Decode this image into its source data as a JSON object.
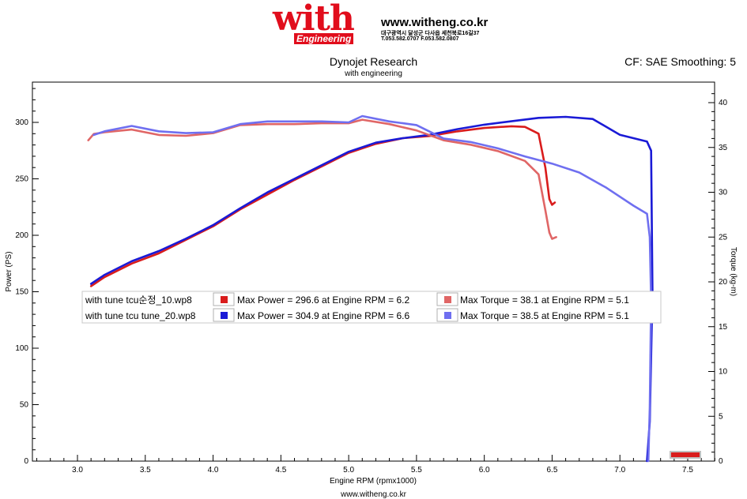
{
  "header": {
    "logo_word": "with",
    "logo_sub": "Engineering",
    "site": "www.witheng.co.kr",
    "address": "대구광역시 달성군 다사읍 세천북로16길37",
    "tel": "T.053.582.0707 F.053.582.0807"
  },
  "footer": {
    "url": "www.witheng.co.kr"
  },
  "colors": {
    "red": "#d91c1c",
    "red_light": "#e06666",
    "blue": "#1a1ad6",
    "blue_light": "#6f6ff0",
    "frame": "#000000",
    "grid": "#dcdcdc"
  },
  "chart_data": {
    "type": "line",
    "title": "Dynojet Research",
    "subtitle": "with engineering",
    "cf_label": "CF: SAE Smoothing: 5",
    "xlabel": "Engine RPM (rpmx1000)",
    "ylabel_left": "Power (PS)",
    "ylabel_right": "Torque (kg-m)",
    "xlim": [
      2.7,
      7.7
    ],
    "ylim_left": [
      0,
      335
    ],
    "ylim_right": [
      0,
      41.1
    ],
    "xticks": [
      "3.0",
      "3.5",
      "4.0",
      "4.5",
      "5.0",
      "5.5",
      "6.0",
      "6.5",
      "7.0",
      "7.5"
    ],
    "yticks_left": [
      "0",
      "50",
      "100",
      "150",
      "200",
      "250",
      "300"
    ],
    "yticks_right": [
      "0",
      "5",
      "10",
      "15",
      "20",
      "25",
      "30",
      "35",
      "40"
    ],
    "grid": false,
    "legend": {
      "placement": "center-left",
      "rows": [
        {
          "run": "with tune tcu순정_10.wp8",
          "power": "Max Power = 296.6 at Engine RPM = 6.2",
          "torque": "Max Torque = 38.1 at Engine RPM = 5.1",
          "power_color": "#d91c1c",
          "torque_color": "#e06666"
        },
        {
          "run": "with tune tcu tune_20.wp8",
          "power": "Max Power = 304.9 at Engine RPM = 6.6",
          "torque": "Max Torque = 38.5 at Engine RPM = 5.1",
          "power_color": "#1a1ad6",
          "torque_color": "#6f6ff0"
        }
      ]
    },
    "series": [
      {
        "axis": "left",
        "color": "#d91c1c",
        "x": [
          3.1,
          3.2,
          3.4,
          3.6,
          3.8,
          4.0,
          4.2,
          4.4,
          4.6,
          4.8,
          5.0,
          5.2,
          5.4,
          5.6,
          5.8,
          6.0,
          6.2,
          6.3,
          6.4,
          6.45,
          6.48,
          6.5,
          6.52
        ],
        "y": [
          155,
          163,
          175,
          184,
          196,
          208,
          223,
          236,
          249,
          261,
          273,
          281,
          286,
          288,
          292,
          295,
          296.6,
          296,
          290,
          260,
          232,
          227,
          229
        ]
      },
      {
        "axis": "left",
        "color": "#1a1ad6",
        "x": [
          3.1,
          3.2,
          3.4,
          3.6,
          3.8,
          4.0,
          4.2,
          4.4,
          4.6,
          4.8,
          5.0,
          5.2,
          5.4,
          5.6,
          5.8,
          6.0,
          6.2,
          6.4,
          6.6,
          6.8,
          7.0,
          7.2,
          7.23,
          7.24,
          7.22,
          7.2
        ],
        "y": [
          157,
          165,
          177,
          186,
          197,
          209,
          224,
          238,
          250,
          262,
          274,
          282,
          286,
          289,
          294,
          298,
          301,
          304,
          304.9,
          303,
          289,
          283,
          275,
          150,
          35,
          0
        ]
      },
      {
        "axis": "right",
        "color": "#e06666",
        "x": [
          3.08,
          3.12,
          3.2,
          3.4,
          3.6,
          3.8,
          4.0,
          4.2,
          4.4,
          4.6,
          4.8,
          5.0,
          5.1,
          5.3,
          5.5,
          5.7,
          5.9,
          6.1,
          6.3,
          6.4,
          6.45,
          6.48,
          6.5,
          6.53
        ],
        "y": [
          35.8,
          36.5,
          36.7,
          37.0,
          36.4,
          36.3,
          36.6,
          37.5,
          37.6,
          37.6,
          37.7,
          37.7,
          38.1,
          37.6,
          36.9,
          35.8,
          35.3,
          34.6,
          33.5,
          32.0,
          28.0,
          25.5,
          24.8,
          25.0
        ]
      },
      {
        "axis": "right",
        "color": "#6f6ff0",
        "x": [
          3.12,
          3.2,
          3.4,
          3.6,
          3.8,
          4.0,
          4.2,
          4.4,
          4.6,
          4.8,
          5.0,
          5.1,
          5.3,
          5.5,
          5.7,
          5.9,
          6.1,
          6.3,
          6.5,
          6.7,
          6.9,
          7.1,
          7.2,
          7.22,
          7.23,
          7.22,
          7.21
        ],
        "y": [
          36.4,
          36.8,
          37.4,
          36.8,
          36.6,
          36.7,
          37.6,
          37.9,
          37.9,
          37.9,
          37.8,
          38.5,
          37.9,
          37.5,
          36.0,
          35.6,
          34.9,
          34.0,
          33.2,
          32.2,
          30.5,
          28.5,
          27.6,
          25.0,
          18.0,
          6.0,
          0.0
        ]
      }
    ]
  }
}
